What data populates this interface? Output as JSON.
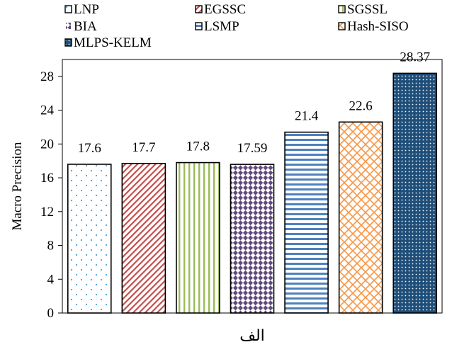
{
  "chart_data": {
    "type": "bar",
    "categories": [
      "LNP",
      "EGSSC",
      "SGSSL",
      "BIA",
      "LSMP",
      "Hash-SISO",
      "MLPS-KELM"
    ],
    "values": [
      17.6,
      17.7,
      17.8,
      17.59,
      21.4,
      22.6,
      28.37
    ],
    "value_labels": [
      "17.6",
      "17.7",
      "17.8",
      "17.59",
      "21.4",
      "22.6",
      "28.37"
    ],
    "ylabel": "Macro Precision",
    "xlabel": "",
    "ylim": [
      0,
      30
    ],
    "yticks": [
      "0",
      "4",
      "8",
      "12",
      "16",
      "20",
      "24",
      "28"
    ],
    "legend": {
      "placement": "top",
      "entries": [
        "LNP",
        "EGSSC",
        "SGSSL",
        "BIA",
        "LSMP",
        "Hash-SISO",
        "MLPS-KELM"
      ]
    },
    "grid": false,
    "caption": "الف",
    "colors": {
      "LNP": "#4a9fd4",
      "EGSSC": "#c0504d",
      "SGSSL": "#9bbb59",
      "BIA": "#604a7b",
      "LSMP": "#4f81bd",
      "Hash-SISO": "#f79646",
      "MLPS-KELM": "#1f4e79"
    }
  }
}
